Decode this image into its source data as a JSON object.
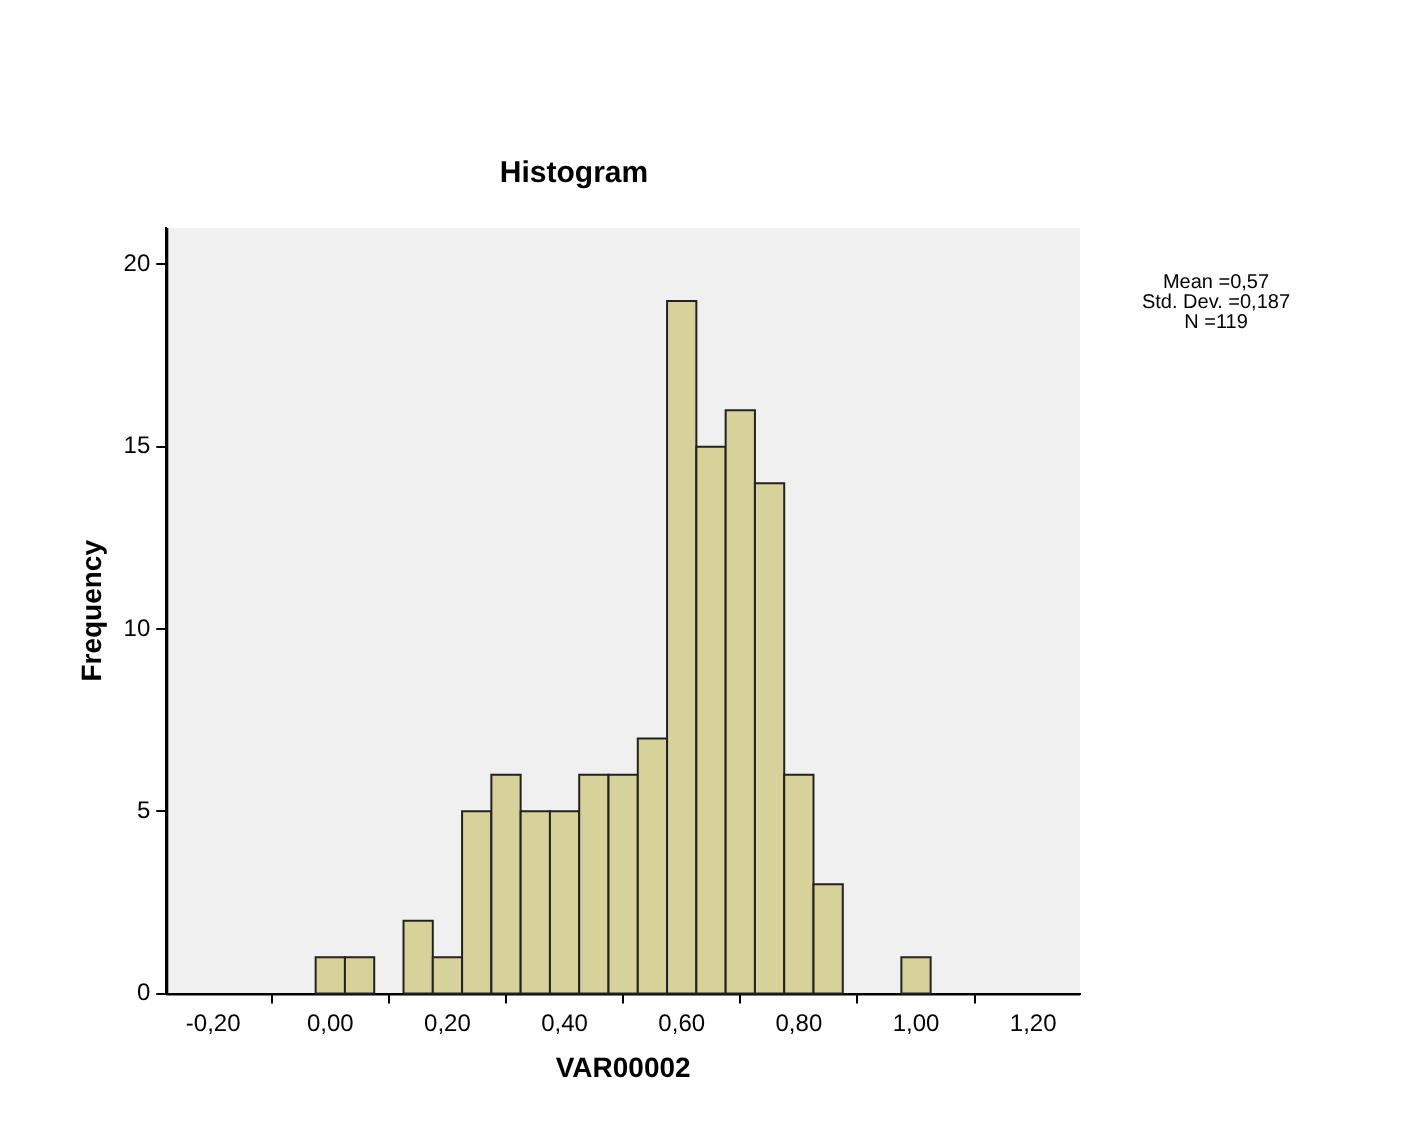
{
  "chart_data": {
    "type": "histogram",
    "title": "Histogram",
    "xlabel": "VAR00002",
    "ylabel": "Frequency",
    "bins": [
      -0.025,
      0.025,
      0.075,
      0.125,
      0.175,
      0.225,
      0.275,
      0.325,
      0.375,
      0.425,
      0.475,
      0.525,
      0.575,
      0.625,
      0.675,
      0.725,
      0.775,
      0.825,
      0.875,
      0.925,
      0.975,
      1.025
    ],
    "values": [
      1,
      1,
      0,
      2,
      1,
      5,
      6,
      5,
      5,
      6,
      6,
      7,
      19,
      15,
      16,
      14,
      6,
      3,
      0,
      0,
      1
    ],
    "color": "#d6d29a",
    "xlim": [
      -0.28,
      1.28
    ],
    "xticks": [
      {
        "value": -0.2,
        "label": "-0,20"
      },
      {
        "value": 0,
        "label": "0,00"
      },
      {
        "value": 0.2,
        "label": "0,20"
      },
      {
        "value": 0.4,
        "label": "0,40"
      },
      {
        "value": 0.6,
        "label": "0,60"
      },
      {
        "value": 0.8,
        "label": "0,80"
      },
      {
        "value": 1,
        "label": "1,00"
      },
      {
        "value": 1.2,
        "label": "1,20"
      }
    ],
    "ylim": [
      0,
      21
    ],
    "yticks": [
      0,
      5,
      10,
      15,
      20
    ],
    "grid": false,
    "legend": false,
    "annotations": [
      "Mean =0,57",
      "Std. Dev. =0,187",
      "N =119"
    ]
  }
}
